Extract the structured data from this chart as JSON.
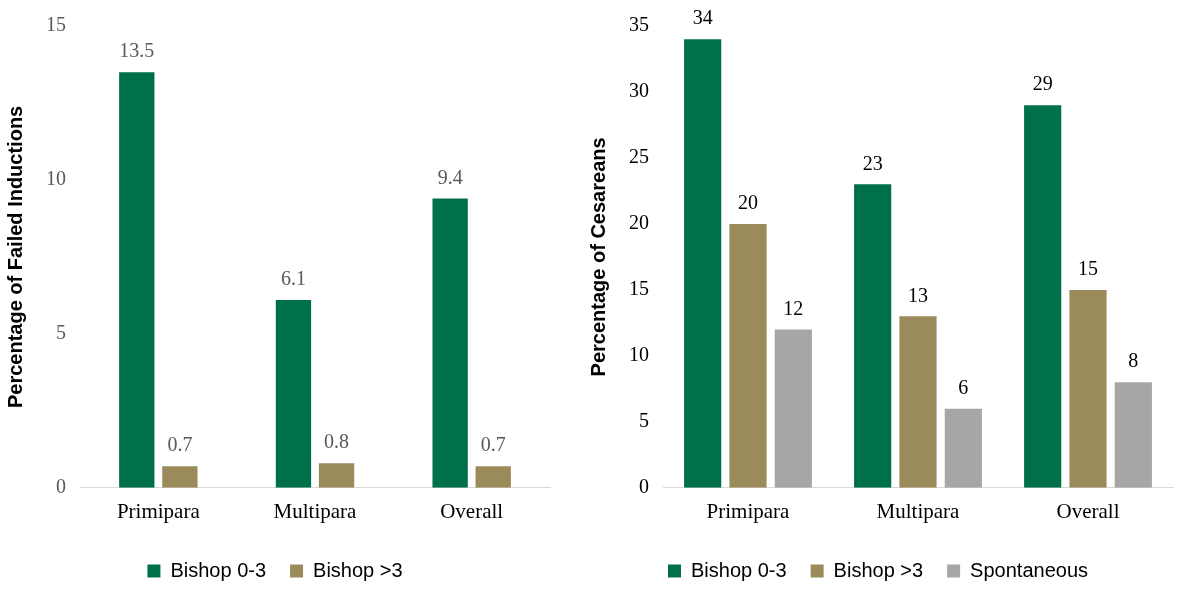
{
  "chart_data": [
    {
      "type": "bar",
      "ylabel": "Percentage of Failed Inductions",
      "categories": [
        "Primipara",
        "Multipara",
        "Overall"
      ],
      "series": [
        {
          "name": "Bishop 0-3",
          "color": "#00704a",
          "values": [
            13.5,
            6.1,
            9.4
          ]
        },
        {
          "name": "Bishop >3",
          "color": "#9b8a5a",
          "values": [
            0.7,
            0.8,
            0.7
          ]
        }
      ],
      "ylim": [
        0,
        15
      ],
      "yticks": [
        0,
        5,
        10,
        15
      ],
      "grid": false,
      "legend": "bottom",
      "data_labels": true
    },
    {
      "type": "bar",
      "ylabel": "Percentage of Cesareans",
      "categories": [
        "Primipara",
        "Multipara",
        "Overall"
      ],
      "series": [
        {
          "name": "Bishop 0-3",
          "color": "#00704a",
          "values": [
            34,
            23,
            29
          ]
        },
        {
          "name": "Bishop >3",
          "color": "#9b8a5a",
          "values": [
            20,
            13,
            15
          ]
        },
        {
          "name": "Spontaneous",
          "color": "#a6a6a6",
          "values": [
            12,
            6,
            8
          ]
        }
      ],
      "ylim": [
        0,
        35
      ],
      "yticks": [
        0,
        5,
        10,
        15,
        20,
        25,
        30,
        35
      ],
      "grid": false,
      "legend": "bottom",
      "data_labels": true
    }
  ]
}
